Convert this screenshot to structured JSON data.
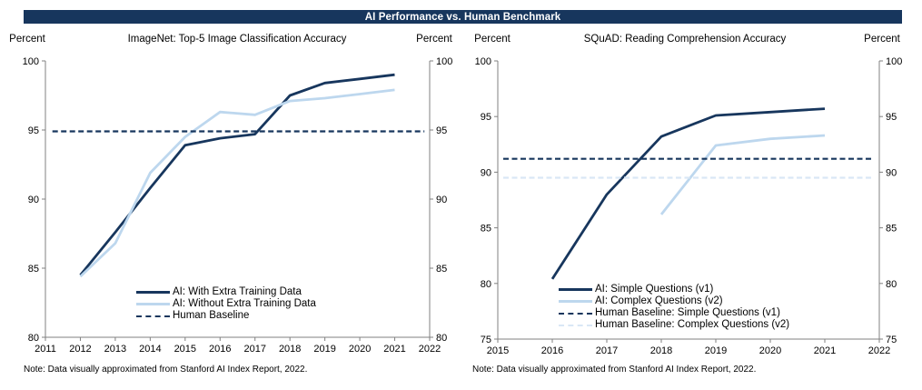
{
  "header": {
    "title": "AI Performance vs. Human Benchmark",
    "bg_color": "#17365d",
    "text_color": "#ffffff"
  },
  "colors": {
    "dark": "#17365d",
    "light": "#bdd7ee",
    "light_pale": "#d9e7f5",
    "axis": "#808080"
  },
  "chart_data": [
    {
      "type": "line",
      "title": "ImageNet: Top-5 Image Classification Accuracy",
      "unit_left": "Percent",
      "unit_right": "Percent",
      "note": "Note: Data visually approximated from Stanford AI Index Report, 2022.",
      "xlim": [
        2011,
        2022
      ],
      "ylim": [
        80,
        100
      ],
      "xticks": [
        2011,
        2012,
        2013,
        2014,
        2015,
        2016,
        2017,
        2018,
        2019,
        2020,
        2021,
        2022
      ],
      "yticks": [
        80,
        85,
        90,
        95,
        100
      ],
      "grid": false,
      "legend_position": "inside-bottom-center",
      "series": [
        {
          "name": "AI: With Extra Training Data",
          "color_key": "dark",
          "dash": false,
          "x": [
            2012,
            2013,
            2014,
            2015,
            2016,
            2017,
            2018,
            2019,
            2020,
            2021
          ],
          "y": [
            84.5,
            87.6,
            90.8,
            93.9,
            94.4,
            94.7,
            97.5,
            98.4,
            98.7,
            99.0
          ]
        },
        {
          "name": "AI: Without Extra Training Data",
          "color_key": "light",
          "dash": false,
          "x": [
            2012,
            2013,
            2014,
            2015,
            2016,
            2017,
            2018,
            2019,
            2020,
            2021
          ],
          "y": [
            84.4,
            86.8,
            91.9,
            94.5,
            96.3,
            96.1,
            97.1,
            97.3,
            97.6,
            97.9
          ]
        },
        {
          "name": "Human Baseline",
          "color_key": "dark",
          "dash": true,
          "baseline_value": 94.9,
          "x": [
            2011.2,
            2021.85
          ],
          "y": [
            94.9,
            94.9
          ]
        }
      ]
    },
    {
      "type": "line",
      "title": "SQuAD: Reading Comprehension Accuracy",
      "unit_left": "Percent",
      "unit_right": "Percent",
      "note": "Note: Data visually approximated from Stanford AI Index Report, 2022.",
      "xlim": [
        2015,
        2022
      ],
      "ylim": [
        75,
        100
      ],
      "xticks": [
        2015,
        2016,
        2017,
        2018,
        2019,
        2020,
        2021,
        2022
      ],
      "yticks": [
        75,
        80,
        85,
        90,
        95,
        100
      ],
      "grid": false,
      "legend_position": "inside-bottom-center",
      "series": [
        {
          "name": "AI: Simple Questions (v1)",
          "color_key": "dark",
          "dash": false,
          "x": [
            2016,
            2017,
            2018,
            2019,
            2020,
            2021
          ],
          "y": [
            80.4,
            88.0,
            93.2,
            95.1,
            95.4,
            95.7
          ]
        },
        {
          "name": "AI: Complex Questions (v2)",
          "color_key": "light",
          "dash": false,
          "x": [
            2018,
            2019,
            2020,
            2021
          ],
          "y": [
            86.2,
            92.4,
            93.0,
            93.3
          ]
        },
        {
          "name": "Human Baseline: Simple Questions (v1)",
          "color_key": "dark",
          "dash": true,
          "baseline_value": 91.2,
          "x": [
            2015.1,
            2021.9
          ],
          "y": [
            91.2,
            91.2
          ]
        },
        {
          "name": "Human Baseline: Complex Questions (v2)",
          "color_key": "light_pale",
          "dash": true,
          "baseline_value": 89.5,
          "x": [
            2015.1,
            2021.9
          ],
          "y": [
            89.5,
            89.5
          ]
        }
      ]
    }
  ]
}
